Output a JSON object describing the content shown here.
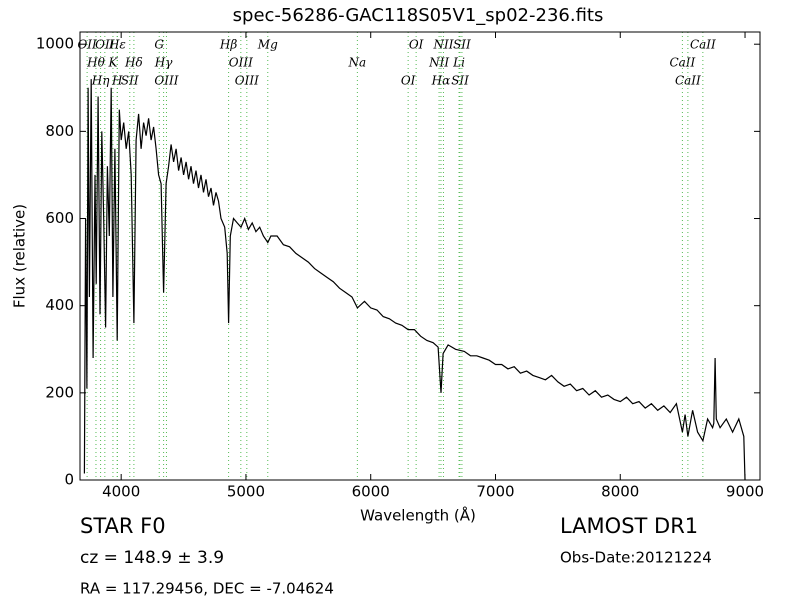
{
  "chart_data": {
    "type": "line",
    "title": "spec-56286-GAC118S05V1_sp02-236.fits",
    "x_label": "Wavelength (Å)",
    "y_label": "Flux (relative)",
    "xlim": [
      3670,
      9120
    ],
    "ylim": [
      0,
      1028
    ],
    "xticks": [
      4000,
      5000,
      6000,
      7000,
      8000,
      9000
    ],
    "yticks": [
      0,
      200,
      400,
      600,
      800,
      1000
    ],
    "color": "#000000",
    "line_color": "#55bb55",
    "x": [
      3705,
      3715,
      3725,
      3735,
      3745,
      3760,
      3775,
      3790,
      3800,
      3815,
      3830,
      3845,
      3860,
      3875,
      3890,
      3905,
      3920,
      3934,
      3950,
      3968,
      3985,
      4000,
      4020,
      4040,
      4060,
      4080,
      4102,
      4120,
      4140,
      4160,
      4180,
      4200,
      4220,
      4240,
      4260,
      4280,
      4300,
      4320,
      4340,
      4360,
      4380,
      4400,
      4420,
      4440,
      4460,
      4480,
      4500,
      4520,
      4540,
      4560,
      4580,
      4600,
      4620,
      4640,
      4660,
      4680,
      4700,
      4720,
      4740,
      4760,
      4780,
      4800,
      4830,
      4850,
      4861,
      4875,
      4900,
      4930,
      4960,
      4990,
      5020,
      5050,
      5080,
      5110,
      5140,
      5175,
      5200,
      5250,
      5300,
      5350,
      5400,
      5450,
      5500,
      5550,
      5600,
      5650,
      5700,
      5750,
      5800,
      5850,
      5893,
      5950,
      6000,
      6050,
      6100,
      6150,
      6200,
      6250,
      6300,
      6350,
      6400,
      6450,
      6500,
      6540,
      6563,
      6580,
      6620,
      6680,
      6750,
      6800,
      6850,
      6900,
      6950,
      7000,
      7050,
      7100,
      7150,
      7200,
      7250,
      7300,
      7350,
      7400,
      7450,
      7500,
      7550,
      7600,
      7650,
      7700,
      7750,
      7800,
      7850,
      7900,
      7950,
      8000,
      8050,
      8100,
      8150,
      8200,
      8250,
      8300,
      8350,
      8400,
      8450,
      8498,
      8520,
      8542,
      8580,
      8620,
      8662,
      8700,
      8740,
      8750,
      8760,
      8770,
      8800,
      8850,
      8900,
      8950,
      8990,
      9000
    ],
    "values": [
      15,
      600,
      210,
      900,
      420,
      920,
      280,
      700,
      450,
      880,
      380,
      800,
      600,
      350,
      720,
      560,
      900,
      420,
      760,
      320,
      850,
      780,
      820,
      760,
      800,
      700,
      360,
      780,
      840,
      760,
      820,
      790,
      830,
      780,
      810,
      760,
      700,
      680,
      430,
      680,
      720,
      770,
      730,
      760,
      710,
      740,
      700,
      730,
      690,
      720,
      680,
      710,
      670,
      700,
      660,
      690,
      650,
      670,
      630,
      660,
      640,
      600,
      580,
      520,
      360,
      560,
      600,
      590,
      580,
      600,
      575,
      590,
      570,
      580,
      560,
      545,
      560,
      560,
      540,
      535,
      520,
      510,
      500,
      485,
      475,
      465,
      455,
      440,
      430,
      420,
      395,
      410,
      395,
      390,
      375,
      370,
      360,
      355,
      345,
      345,
      330,
      320,
      315,
      305,
      200,
      290,
      310,
      300,
      295,
      285,
      285,
      280,
      275,
      265,
      265,
      255,
      260,
      245,
      250,
      240,
      235,
      230,
      240,
      225,
      215,
      220,
      205,
      210,
      195,
      205,
      190,
      195,
      185,
      180,
      190,
      175,
      180,
      165,
      175,
      160,
      170,
      155,
      175,
      110,
      150,
      100,
      160,
      110,
      90,
      140,
      120,
      130,
      280,
      140,
      120,
      140,
      110,
      140,
      100,
      0
    ],
    "lines": [
      {
        "name": "OII",
        "wavelength": 3727
      },
      {
        "name": "Hθ",
        "wavelength": 3798
      },
      {
        "name": "Hη",
        "wavelength": 3835
      },
      {
        "name": "OII",
        "wavelength": 3869
      },
      {
        "name": "K",
        "wavelength": 3934
      },
      {
        "name": "H",
        "wavelength": 3968
      },
      {
        "name": "Hε",
        "wavelength": 3970
      },
      {
        "name": "Hδ",
        "wavelength": 4102
      },
      {
        "name": "SII",
        "wavelength": 4069
      },
      {
        "name": "G",
        "wavelength": 4305
      },
      {
        "name": "Hγ",
        "wavelength": 4340
      },
      {
        "name": "OIII",
        "wavelength": 4363
      },
      {
        "name": "Hβ",
        "wavelength": 4861
      },
      {
        "name": "OIII",
        "wavelength": 4959
      },
      {
        "name": "OIII",
        "wavelength": 5007
      },
      {
        "name": "Mg",
        "wavelength": 5175
      },
      {
        "name": "Na",
        "wavelength": 5893
      },
      {
        "name": "OI",
        "wavelength": 6300
      },
      {
        "name": "OI",
        "wavelength": 6364
      },
      {
        "name": "NII",
        "wavelength": 6548
      },
      {
        "name": "Hα",
        "wavelength": 6563
      },
      {
        "name": "NII",
        "wavelength": 6583
      },
      {
        "name": "Li",
        "wavelength": 6708
      },
      {
        "name": "SII",
        "wavelength": 6716
      },
      {
        "name": "SII",
        "wavelength": 6731
      },
      {
        "name": "CaII",
        "wavelength": 8498
      },
      {
        "name": "CaII",
        "wavelength": 8542
      },
      {
        "name": "CaII",
        "wavelength": 8662
      }
    ],
    "info": {
      "class": "STAR   F0",
      "cz": "cz = 148.9 ± 3.9",
      "coords": "RA = 117.29456, DEC = -7.04624",
      "survey": "LAMOST DR1",
      "date": "Obs-Date:20121224"
    }
  }
}
